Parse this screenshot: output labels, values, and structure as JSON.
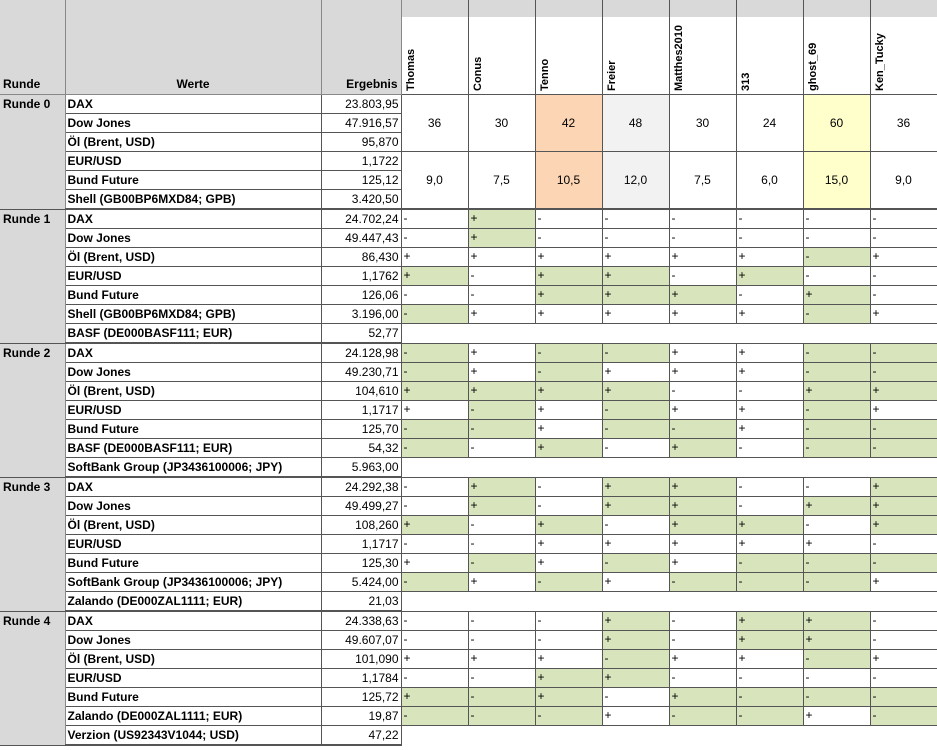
{
  "headers": {
    "runde": "Runde",
    "werte": "Werte",
    "ergebnis": "Ergebnis"
  },
  "players": [
    "Thomas",
    "Conus",
    "Tenno",
    "Freier",
    "Matthes2010",
    "313",
    "ghost_69",
    "Ken_Tucky"
  ],
  "colors": {
    "header_gray": "#d9d9d9",
    "plus_green": "#d8e4bc",
    "highlight_orange": "#fcd5b4",
    "highlight_yellow": "#ffffcc",
    "highlight_gray": "#f2f2f2"
  },
  "runde0": {
    "label": "Runde 0",
    "rows": [
      {
        "w": "DAX",
        "e": "23.803,95"
      },
      {
        "w": "Dow Jones",
        "e": "47.916,57"
      },
      {
        "w": "Öl (Brent, USD)",
        "e": "95,870"
      },
      {
        "w": "EUR/USD",
        "e": "1,1722"
      },
      {
        "w": "Bund Future",
        "e": "125,12"
      },
      {
        "w": "Shell (GB00BP6MXD84; GPB)",
        "e": "3.420,50"
      }
    ],
    "points": [
      "36",
      "30",
      "42",
      "48",
      "30",
      "24",
      "60",
      "36"
    ],
    "avg": [
      "9,0",
      "7,5",
      "10,5",
      "12,0",
      "7,5",
      "6,0",
      "15,0",
      "9,0"
    ],
    "highlights": [
      "",
      "",
      "orange",
      "gray",
      "",
      "",
      "yellow",
      ""
    ]
  },
  "runden": [
    {
      "label": "Runde 1",
      "rows": [
        {
          "w": "DAX",
          "e": "24.702,24",
          "c": [
            "-",
            "+",
            "-",
            "-",
            "-",
            "-",
            "-",
            "-"
          ],
          "g": [
            0,
            1,
            0,
            0,
            0,
            0,
            0,
            0
          ]
        },
        {
          "w": "Dow Jones",
          "e": "49.447,43",
          "c": [
            "-",
            "+",
            "-",
            "-",
            "-",
            "-",
            "-",
            "-"
          ],
          "g": [
            0,
            1,
            0,
            0,
            0,
            0,
            0,
            0
          ]
        },
        {
          "w": "Öl (Brent, USD)",
          "e": "86,430",
          "c": [
            "+",
            "+",
            "+",
            "+",
            "+",
            "+",
            "-",
            "+"
          ],
          "g": [
            0,
            0,
            0,
            0,
            0,
            0,
            1,
            0
          ]
        },
        {
          "w": "EUR/USD",
          "e": "1,1762",
          "c": [
            "+",
            "-",
            "+",
            "+",
            "-",
            "+",
            "-",
            "-"
          ],
          "g": [
            1,
            0,
            1,
            1,
            0,
            1,
            0,
            0
          ]
        },
        {
          "w": "Bund Future",
          "e": "126,06",
          "c": [
            "-",
            "-",
            "+",
            "+",
            "+",
            "-",
            "+",
            "-"
          ],
          "g": [
            0,
            0,
            1,
            1,
            1,
            0,
            1,
            0
          ]
        },
        {
          "w": "Shell (GB00BP6MXD84; GPB)",
          "e": "3.196,00",
          "c": [
            "-",
            "+",
            "+",
            "+",
            "+",
            "+",
            "-",
            "+"
          ],
          "g": [
            1,
            0,
            0,
            0,
            0,
            0,
            1,
            0
          ]
        },
        {
          "w": "BASF (DE000BASF111; EUR)",
          "e": "52,77",
          "blank": true
        }
      ]
    },
    {
      "label": "Runde 2",
      "rows": [
        {
          "w": "DAX",
          "e": "24.128,98",
          "c": [
            "-",
            "+",
            "-",
            "-",
            "+",
            "+",
            "-",
            "-"
          ],
          "g": [
            1,
            0,
            1,
            1,
            0,
            0,
            1,
            1
          ]
        },
        {
          "w": "Dow Jones",
          "e": "49.230,71",
          "c": [
            "-",
            "+",
            "-",
            "+",
            "+",
            "+",
            "-",
            "-"
          ],
          "g": [
            1,
            0,
            1,
            0,
            0,
            0,
            1,
            1
          ]
        },
        {
          "w": "Öl (Brent, USD)",
          "e": "104,610",
          "c": [
            "+",
            "+",
            "+",
            "+",
            "-",
            "-",
            "+",
            "+"
          ],
          "g": [
            1,
            1,
            1,
            1,
            0,
            0,
            1,
            1
          ]
        },
        {
          "w": "EUR/USD",
          "e": "1,1717",
          "c": [
            "+",
            "-",
            "+",
            "-",
            "+",
            "+",
            "-",
            "+"
          ],
          "g": [
            0,
            1,
            0,
            1,
            0,
            0,
            1,
            0
          ]
        },
        {
          "w": "Bund Future",
          "e": "125,70",
          "c": [
            "-",
            "-",
            "+",
            "-",
            "-",
            "+",
            "-",
            "-"
          ],
          "g": [
            1,
            1,
            0,
            1,
            1,
            0,
            1,
            1
          ]
        },
        {
          "w": "BASF (DE000BASF111; EUR)",
          "e": "54,32",
          "c": [
            "-",
            "-",
            "+",
            "-",
            "+",
            "-",
            "-",
            "-"
          ],
          "g": [
            1,
            0,
            1,
            0,
            1,
            0,
            1,
            1
          ]
        },
        {
          "w": "SoftBank Group (JP3436100006; JPY)",
          "e": "5.963,00",
          "blank": true
        }
      ]
    },
    {
      "label": "Runde 3",
      "rows": [
        {
          "w": "DAX",
          "e": "24.292,38",
          "c": [
            "-",
            "+",
            "-",
            "+",
            "+",
            "-",
            "-",
            "+"
          ],
          "g": [
            0,
            1,
            0,
            1,
            1,
            0,
            0,
            1
          ]
        },
        {
          "w": "Dow Jones",
          "e": "49.499,27",
          "c": [
            "-",
            "+",
            "-",
            "+",
            "+",
            "-",
            "+",
            "+"
          ],
          "g": [
            0,
            1,
            0,
            1,
            1,
            0,
            1,
            1
          ]
        },
        {
          "w": "Öl (Brent, USD)",
          "e": "108,260",
          "c": [
            "+",
            "-",
            "+",
            "-",
            "+",
            "+",
            "-",
            "+"
          ],
          "g": [
            1,
            0,
            1,
            0,
            1,
            1,
            0,
            1
          ]
        },
        {
          "w": "EUR/USD",
          "e": "1,1717",
          "c": [
            "-",
            "-",
            "+",
            "+",
            "+",
            "+",
            "+",
            "-"
          ],
          "g": [
            0,
            0,
            0,
            0,
            0,
            0,
            0,
            0
          ]
        },
        {
          "w": "Bund Future",
          "e": "125,30",
          "c": [
            "+",
            "-",
            "+",
            "-",
            "+",
            "-",
            "-",
            "-"
          ],
          "g": [
            0,
            1,
            0,
            1,
            0,
            1,
            1,
            1
          ]
        },
        {
          "w": "SoftBank Group (JP3436100006; JPY)",
          "e": "5.424,00",
          "c": [
            "-",
            "+",
            "-",
            "+",
            "-",
            "-",
            "-",
            "+"
          ],
          "g": [
            1,
            0,
            1,
            0,
            1,
            1,
            1,
            0
          ]
        },
        {
          "w": "Zalando (DE000ZAL1111; EUR)",
          "e": "21,03",
          "blank": true
        }
      ]
    },
    {
      "label": "Runde 4",
      "rows": [
        {
          "w": "DAX",
          "e": "24.338,63",
          "c": [
            "-",
            "-",
            "-",
            "+",
            "-",
            "+",
            "+",
            "-"
          ],
          "g": [
            0,
            0,
            0,
            1,
            0,
            1,
            1,
            0
          ]
        },
        {
          "w": "Dow Jones",
          "e": "49.607,07",
          "c": [
            "-",
            "-",
            "-",
            "+",
            "-",
            "+",
            "+",
            "-"
          ],
          "g": [
            0,
            0,
            0,
            1,
            0,
            1,
            1,
            0
          ]
        },
        {
          "w": "Öl (Brent, USD)",
          "e": "101,090",
          "c": [
            "+",
            "+",
            "+",
            "-",
            "+",
            "+",
            "-",
            "+"
          ],
          "g": [
            0,
            0,
            0,
            1,
            0,
            0,
            1,
            0
          ]
        },
        {
          "w": "EUR/USD",
          "e": "1,1784",
          "c": [
            "-",
            "-",
            "+",
            "+",
            "-",
            "-",
            "-",
            "-"
          ],
          "g": [
            0,
            0,
            1,
            1,
            0,
            0,
            0,
            0
          ]
        },
        {
          "w": "Bund Future",
          "e": "125,72",
          "c": [
            "+",
            "-",
            "+",
            "-",
            "+",
            "-",
            "-",
            "-"
          ],
          "g": [
            1,
            1,
            1,
            0,
            1,
            1,
            1,
            1
          ]
        },
        {
          "w": "Zalando (DE000ZAL1111; EUR)",
          "e": "19,87",
          "c": [
            "-",
            "-",
            "-",
            "+",
            "-",
            "-",
            "+",
            "-"
          ],
          "g": [
            1,
            1,
            1,
            0,
            1,
            1,
            0,
            1
          ]
        },
        {
          "w": "Verzion (US92343V1044; USD)",
          "e": "47,22",
          "blank": true
        }
      ]
    }
  ]
}
